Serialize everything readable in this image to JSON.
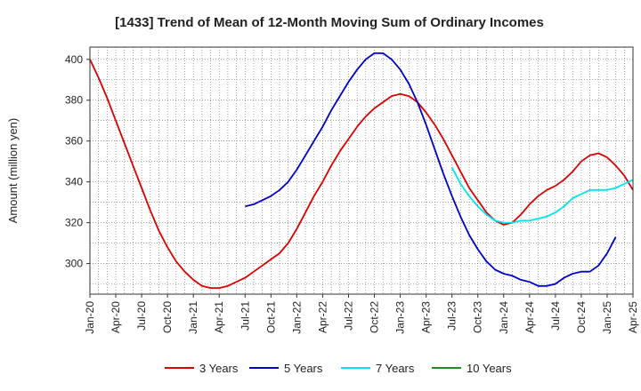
{
  "chart_data": {
    "type": "line",
    "title": "[1433]  Trend of Mean of 12-Month Moving Sum of Ordinary Incomes",
    "xlabel": "",
    "ylabel": "Amount (million yen)",
    "x_start": "2020-01",
    "xlim": [
      0,
      63
    ],
    "ylim": [
      285,
      406
    ],
    "yticks": [
      300,
      320,
      340,
      360,
      380,
      400
    ],
    "xtick_labels": [
      "Jan-20",
      "Apr-20",
      "Jul-20",
      "Oct-20",
      "Jan-21",
      "Apr-21",
      "Jul-21",
      "Oct-21",
      "Jan-22",
      "Apr-22",
      "Jul-22",
      "Oct-22",
      "Jan-23",
      "Apr-23",
      "Jul-23",
      "Oct-23",
      "Jan-24",
      "Apr-24",
      "Jul-24",
      "Oct-24",
      "Jan-25",
      "Apr-25"
    ],
    "grid": true,
    "legend_position": "bottom",
    "series": [
      {
        "name": "3 Years",
        "color": "#dd0000",
        "start_index": 0,
        "values": [
          400,
          391,
          381,
          370,
          359,
          348,
          337,
          326,
          316,
          308,
          301,
          296,
          292,
          289,
          288,
          288,
          289,
          291,
          293,
          296,
          299,
          302,
          305,
          310,
          317,
          325,
          333,
          340,
          348,
          355,
          361,
          367,
          372,
          376,
          379,
          382,
          383,
          382,
          379,
          374,
          368,
          361,
          353,
          345,
          337,
          331,
          325,
          321,
          319,
          320,
          324,
          329,
          333,
          336,
          338,
          341,
          345,
          350,
          353,
          354,
          352,
          348,
          343,
          336
        ]
      },
      {
        "name": "5 Years",
        "color": "#0000cc",
        "start_index": 18,
        "values": [
          328,
          329,
          331,
          333,
          336,
          340,
          346,
          353,
          360,
          367,
          375,
          382,
          389,
          395,
          400,
          403,
          403,
          400,
          395,
          388,
          379,
          368,
          356,
          344,
          333,
          323,
          314,
          307,
          301,
          297,
          295,
          294,
          292,
          291,
          289,
          289,
          290,
          293,
          295,
          296,
          296,
          299,
          305,
          313
        ]
      },
      {
        "name": "7 Years",
        "color": "#00e5ee",
        "start_index": 42,
        "values": [
          347,
          339,
          333,
          328,
          324,
          321,
          320,
          320,
          321,
          321,
          322,
          323,
          325,
          328,
          332,
          334,
          336,
          336,
          336,
          337,
          339,
          341
        ]
      },
      {
        "name": "10 Years",
        "color": "#228b22",
        "start_index": 0,
        "values": []
      }
    ]
  }
}
